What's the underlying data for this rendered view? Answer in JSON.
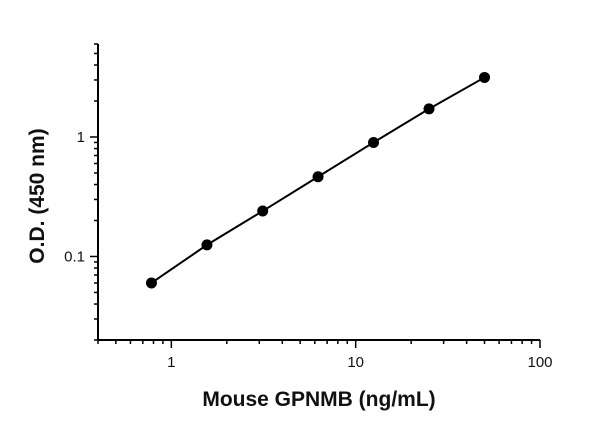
{
  "chart_data": {
    "type": "scatter",
    "title": "",
    "xlabel": "Mouse GPNMB (ng/mL)",
    "ylabel": "O.D. (450 nm)",
    "x_scale": "log",
    "y_scale": "log",
    "xlim": [
      0.4,
      100
    ],
    "ylim": [
      0.02,
      6
    ],
    "x_ticks": [
      {
        "value": 1,
        "label": "1"
      },
      {
        "value": 10,
        "label": "10"
      },
      {
        "value": 100,
        "label": "100"
      }
    ],
    "y_ticks": [
      {
        "value": 0.1,
        "label": "0.1"
      },
      {
        "value": 1,
        "label": "1"
      }
    ],
    "grid": false,
    "legend": "none",
    "fit_line": true,
    "series": [
      {
        "color": "#000000",
        "x": [
          0.78,
          1.56,
          3.13,
          6.25,
          12.5,
          25,
          50
        ],
        "y": [
          0.06,
          0.125,
          0.24,
          0.465,
          0.9,
          1.72,
          3.15
        ]
      }
    ]
  }
}
